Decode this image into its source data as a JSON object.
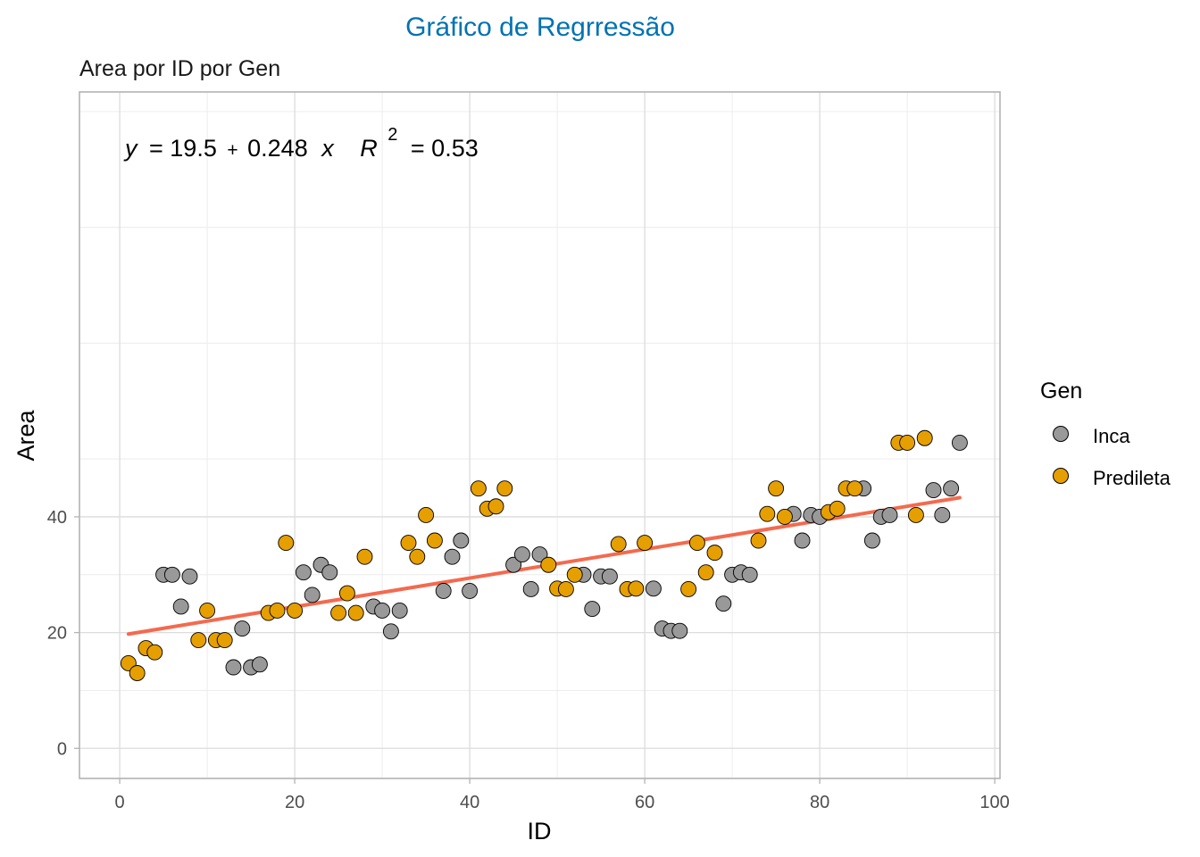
{
  "chart_data": {
    "type": "scatter",
    "title": "Gráfico de Regrressão",
    "subtitle": "Area por ID por Gen",
    "xlabel": "ID",
    "ylabel": "Area",
    "xlim": [
      -4.6,
      100.6
    ],
    "ylim": [
      -5.2,
      113.4
    ],
    "x_ticks": [
      0,
      20,
      40,
      60,
      80,
      100
    ],
    "y_ticks": [
      0,
      20,
      40
    ],
    "grid": true,
    "legend": {
      "title": "Gen",
      "placement": "right"
    },
    "colors": {
      "title": "#0072B2",
      "Inca": "#999999",
      "Predileta": "#E69F00",
      "regression": "#F46A4E"
    },
    "equation": {
      "y": "y",
      "eq": "= 19.5",
      "plus": "+",
      "coef": "0.248",
      "x": "x",
      "r": "R",
      "exp": "2",
      "r2": "= 0.53"
    },
    "regression": {
      "intercept": 19.5,
      "slope": 0.248,
      "r2": 0.53,
      "x_range": [
        1,
        96
      ]
    },
    "series": [
      {
        "name": "Inca",
        "points": [
          [
            5,
            30
          ],
          [
            6,
            30
          ],
          [
            7,
            24.5
          ],
          [
            8,
            29.7
          ],
          [
            13,
            14
          ],
          [
            14,
            20.7
          ],
          [
            15,
            14
          ],
          [
            16,
            14.5
          ],
          [
            21,
            30.4
          ],
          [
            22,
            26.5
          ],
          [
            23,
            31.7
          ],
          [
            24,
            30.4
          ],
          [
            29,
            24.5
          ],
          [
            30,
            23.8
          ],
          [
            31,
            20.2
          ],
          [
            32,
            23.8
          ],
          [
            37,
            27.2
          ],
          [
            38,
            33.1
          ],
          [
            39,
            35.9
          ],
          [
            40,
            27.2
          ],
          [
            45,
            31.7
          ],
          [
            46,
            33.5
          ],
          [
            47,
            27.5
          ],
          [
            48,
            33.5
          ],
          [
            53,
            30
          ],
          [
            54,
            24.1
          ],
          [
            55,
            29.7
          ],
          [
            56,
            29.7
          ],
          [
            61,
            27.6
          ],
          [
            62,
            20.7
          ],
          [
            63,
            20.3
          ],
          [
            64,
            20.3
          ],
          [
            69,
            25
          ],
          [
            70,
            30
          ],
          [
            71,
            30.4
          ],
          [
            72,
            30
          ],
          [
            77,
            40.5
          ],
          [
            78,
            35.9
          ],
          [
            79,
            40.3
          ],
          [
            80,
            40
          ],
          [
            85,
            44.9
          ],
          [
            86,
            35.9
          ],
          [
            87,
            40
          ],
          [
            88,
            40.3
          ],
          [
            93,
            44.6
          ],
          [
            94,
            40.3
          ],
          [
            95,
            44.9
          ],
          [
            96,
            52.8
          ]
        ]
      },
      {
        "name": "Predileta",
        "points": [
          [
            1,
            14.7
          ],
          [
            2,
            13
          ],
          [
            3,
            17.3
          ],
          [
            4,
            16.6
          ],
          [
            9,
            18.7
          ],
          [
            10,
            23.8
          ],
          [
            11,
            18.7
          ],
          [
            12,
            18.7
          ],
          [
            17,
            23.4
          ],
          [
            18,
            23.8
          ],
          [
            19,
            35.5
          ],
          [
            20,
            23.8
          ],
          [
            25,
            23.4
          ],
          [
            26,
            26.8
          ],
          [
            27,
            23.4
          ],
          [
            28,
            33.1
          ],
          [
            33,
            35.5
          ],
          [
            34,
            33.1
          ],
          [
            35,
            40.3
          ],
          [
            36,
            35.9
          ],
          [
            41,
            44.9
          ],
          [
            42,
            41.4
          ],
          [
            43,
            41.8
          ],
          [
            44,
            44.9
          ],
          [
            49,
            31.7
          ],
          [
            50,
            27.6
          ],
          [
            51,
            27.5
          ],
          [
            52,
            30
          ],
          [
            57,
            35.3
          ],
          [
            58,
            27.5
          ],
          [
            59,
            27.6
          ],
          [
            60,
            35.5
          ],
          [
            65,
            27.5
          ],
          [
            66,
            35.5
          ],
          [
            67,
            30.4
          ],
          [
            68,
            33.8
          ],
          [
            73,
            35.9
          ],
          [
            74,
            40.5
          ],
          [
            75,
            44.9
          ],
          [
            76,
            40
          ],
          [
            81,
            40.8
          ],
          [
            82,
            41.4
          ],
          [
            83,
            44.9
          ],
          [
            84,
            44.9
          ],
          [
            89,
            52.8
          ],
          [
            90,
            52.8
          ],
          [
            91,
            40.3
          ],
          [
            92,
            53.6
          ]
        ]
      }
    ]
  }
}
